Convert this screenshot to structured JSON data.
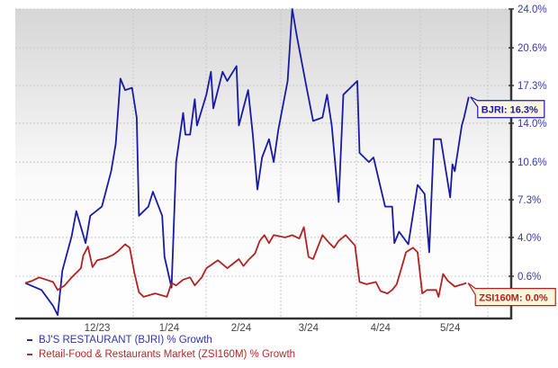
{
  "chart_data": {
    "type": "line",
    "title": "",
    "xlabel": "",
    "ylabel": "",
    "x_tick_labels": [
      "12/23",
      "1/24",
      "2/24",
      "3/24",
      "4/24",
      "5/24"
    ],
    "y_tick_labels": [
      "24.0%",
      "20.6%",
      "17.3%",
      "14.0%",
      "10.6%",
      "7.3%",
      "4.0%",
      "0.6%"
    ],
    "y_ticks": [
      24.0,
      20.6,
      17.3,
      14.0,
      10.6,
      7.3,
      4.0,
      0.6
    ],
    "ylim": [
      -3.1,
      24.0
    ],
    "y_axis_position": "right",
    "grid": true,
    "legend_placement": "bottom-left",
    "series": [
      {
        "name": "BJ'S RESTAURANT (BJRI) % Growth",
        "color": "#1a1aa6",
        "end_label": "BJRI: 16.3%",
        "points": [
          [
            "2023-10-31",
            0.0
          ],
          [
            "2023-11-07",
            -0.6
          ],
          [
            "2023-11-12",
            -2.0
          ],
          [
            "2023-11-14",
            -2.8
          ],
          [
            "2023-11-16",
            1.1
          ],
          [
            "2023-11-20",
            4.1
          ],
          [
            "2023-11-22",
            6.3
          ],
          [
            "2023-11-26",
            3.5
          ],
          [
            "2023-11-28",
            5.9
          ],
          [
            "2023-12-03",
            6.7
          ],
          [
            "2023-12-07",
            9.8
          ],
          [
            "2023-12-09",
            12.2
          ],
          [
            "2023-12-11",
            17.9
          ],
          [
            "2023-12-13",
            16.9
          ],
          [
            "2023-12-16",
            17.1
          ],
          [
            "2023-12-18",
            14.5
          ],
          [
            "2023-12-19",
            5.9
          ],
          [
            "2023-12-23",
            6.7
          ],
          [
            "2023-12-25",
            8.0
          ],
          [
            "2023-12-29",
            5.9
          ],
          [
            "2023-12-30",
            2.3
          ],
          [
            "2024-01-02",
            -0.4
          ],
          [
            "2024-01-04",
            10.6
          ],
          [
            "2024-01-07",
            14.9
          ],
          [
            "2024-01-08",
            13.0
          ],
          [
            "2024-01-10",
            13.0
          ],
          [
            "2024-01-12",
            16.1
          ],
          [
            "2024-01-13",
            13.8
          ],
          [
            "2024-01-17",
            16.5
          ],
          [
            "2024-01-19",
            18.5
          ],
          [
            "2024-01-20",
            15.3
          ],
          [
            "2024-01-24",
            18.5
          ],
          [
            "2024-01-26",
            17.7
          ],
          [
            "2024-01-30",
            19.0
          ],
          [
            "2024-01-31",
            13.8
          ],
          [
            "2024-02-04",
            16.9
          ],
          [
            "2024-02-06",
            13.0
          ],
          [
            "2024-02-08",
            8.2
          ],
          [
            "2024-02-10",
            11.0
          ],
          [
            "2024-02-13",
            12.6
          ],
          [
            "2024-02-15",
            10.6
          ],
          [
            "2024-02-17",
            13.4
          ],
          [
            "2024-02-21",
            17.7
          ],
          [
            "2024-02-23",
            24.0
          ],
          [
            "2024-02-25",
            21.6
          ],
          [
            "2024-02-29",
            17.3
          ],
          [
            "2024-03-03",
            14.2
          ],
          [
            "2024-03-07",
            14.5
          ],
          [
            "2024-03-09",
            16.5
          ],
          [
            "2024-03-11",
            13.8
          ],
          [
            "2024-03-14",
            7.1
          ],
          [
            "2024-03-16",
            16.5
          ],
          [
            "2024-03-22",
            17.7
          ],
          [
            "2024-03-23",
            11.4
          ],
          [
            "2024-03-27",
            10.6
          ],
          [
            "2024-03-29",
            11.0
          ],
          [
            "2024-04-03",
            6.7
          ],
          [
            "2024-04-06",
            6.7
          ],
          [
            "2024-04-07",
            3.5
          ],
          [
            "2024-04-09",
            4.5
          ],
          [
            "2024-04-13",
            3.4
          ],
          [
            "2024-04-17",
            8.6
          ],
          [
            "2024-04-20",
            7.8
          ],
          [
            "2024-04-22",
            2.7
          ],
          [
            "2024-04-24",
            12.6
          ],
          [
            "2024-04-27",
            12.6
          ],
          [
            "2024-05-01",
            7.5
          ],
          [
            "2024-05-02",
            10.4
          ],
          [
            "2024-05-03",
            9.8
          ],
          [
            "2024-05-06",
            13.8
          ],
          [
            "2024-05-07",
            14.5
          ],
          [
            "2024-05-09",
            16.3
          ]
        ]
      },
      {
        "name": "Retail-Food & Restaurants Market (ZSI160M) % Growth",
        "color": "#b22222",
        "end_label": "ZSI160M: 0.0%",
        "points": [
          [
            "2023-10-31",
            0.0
          ],
          [
            "2023-11-03",
            0.2
          ],
          [
            "2023-11-06",
            0.5
          ],
          [
            "2023-11-12",
            0.1
          ],
          [
            "2023-11-14",
            -0.6
          ],
          [
            "2023-11-17",
            -0.2
          ],
          [
            "2023-11-20",
            0.5
          ],
          [
            "2023-11-24",
            1.3
          ],
          [
            "2023-11-25",
            2.4
          ],
          [
            "2023-11-27",
            3.2
          ],
          [
            "2023-11-29",
            1.4
          ],
          [
            "2023-12-01",
            2.0
          ],
          [
            "2023-12-05",
            2.2
          ],
          [
            "2023-12-08",
            2.5
          ],
          [
            "2023-12-10",
            2.8
          ],
          [
            "2023-12-13",
            3.4
          ],
          [
            "2023-12-15",
            3.1
          ],
          [
            "2023-12-17",
            0.9
          ],
          [
            "2023-12-19",
            -0.8
          ],
          [
            "2023-12-21",
            -1.2
          ],
          [
            "2023-12-26",
            -0.9
          ],
          [
            "2023-12-31",
            -1.2
          ],
          [
            "2024-01-02",
            0.0
          ],
          [
            "2024-01-04",
            -0.2
          ],
          [
            "2024-01-07",
            0.3
          ],
          [
            "2024-01-10",
            0.5
          ],
          [
            "2024-01-12",
            -0.2
          ],
          [
            "2024-01-15",
            0.5
          ],
          [
            "2024-01-17",
            1.3
          ],
          [
            "2024-01-22",
            2.0
          ],
          [
            "2024-01-26",
            1.3
          ],
          [
            "2024-01-31",
            2.1
          ],
          [
            "2024-02-02",
            1.5
          ],
          [
            "2024-02-04",
            2.0
          ],
          [
            "2024-02-07",
            2.6
          ],
          [
            "2024-02-09",
            3.7
          ],
          [
            "2024-02-11",
            4.2
          ],
          [
            "2024-02-13",
            3.5
          ],
          [
            "2024-02-15",
            4.2
          ],
          [
            "2024-02-20",
            4.0
          ],
          [
            "2024-02-23",
            4.2
          ],
          [
            "2024-02-26",
            3.9
          ],
          [
            "2024-02-28",
            4.9
          ],
          [
            "2024-03-01",
            2.3
          ],
          [
            "2024-03-03",
            2.1
          ],
          [
            "2024-03-07",
            4.2
          ],
          [
            "2024-03-10",
            3.5
          ],
          [
            "2024-03-12",
            3.1
          ],
          [
            "2024-03-14",
            3.7
          ],
          [
            "2024-03-17",
            4.2
          ],
          [
            "2024-03-21",
            3.3
          ],
          [
            "2024-03-23",
            0.1
          ],
          [
            "2024-03-26",
            -0.1
          ],
          [
            "2024-03-30",
            0.1
          ],
          [
            "2024-04-01",
            -0.7
          ],
          [
            "2024-04-04",
            -0.9
          ],
          [
            "2024-04-06",
            -0.6
          ],
          [
            "2024-04-08",
            -0.1
          ],
          [
            "2024-04-10",
            1.3
          ],
          [
            "2024-04-12",
            2.7
          ],
          [
            "2024-04-15",
            3.1
          ],
          [
            "2024-04-17",
            2.7
          ],
          [
            "2024-04-19",
            -0.9
          ],
          [
            "2024-04-21",
            -0.6
          ],
          [
            "2024-04-25",
            -0.6
          ],
          [
            "2024-04-26",
            -1.2
          ],
          [
            "2024-04-28",
            0.8
          ],
          [
            "2024-04-30",
            0.2
          ],
          [
            "2024-05-03",
            -0.3
          ],
          [
            "2024-05-08",
            0.0
          ]
        ]
      }
    ]
  },
  "legend": {
    "items": [
      {
        "label": "BJ'S RESTAURANT (BJRI) % Growth",
        "color": "#2a2aa8"
      },
      {
        "label": "Retail-Food & Restaurants Market (ZSI160M) % Growth",
        "color": "#b22a2a"
      }
    ]
  },
  "colors": {
    "axis_label": "#3a3aa0",
    "tick_label": "#444444",
    "label_box_fill": "#fdf6dc"
  }
}
